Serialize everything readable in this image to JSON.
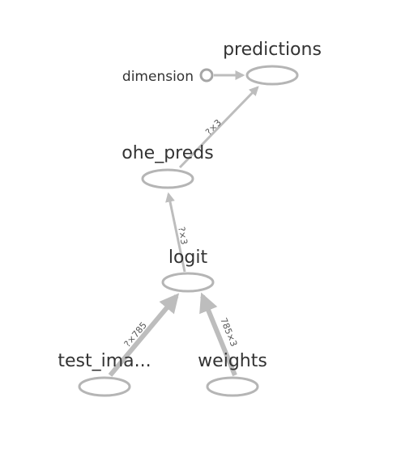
{
  "graph": {
    "nodes": {
      "predictions": "predictions",
      "dimension": "dimension",
      "ohe_preds": "ohe_preds",
      "logit": "logit",
      "test_images": "test_ima...",
      "weights": "weights"
    },
    "edges": {
      "ohe_to_predictions": "?×3",
      "logit_to_ohe": "?×3",
      "test_images_to_logit": "?×785",
      "weights_to_logit": "785×3"
    }
  },
  "colors": {
    "node_stroke": "#b5b5b5",
    "edge": "#bdbdbd",
    "text": "#333333"
  }
}
